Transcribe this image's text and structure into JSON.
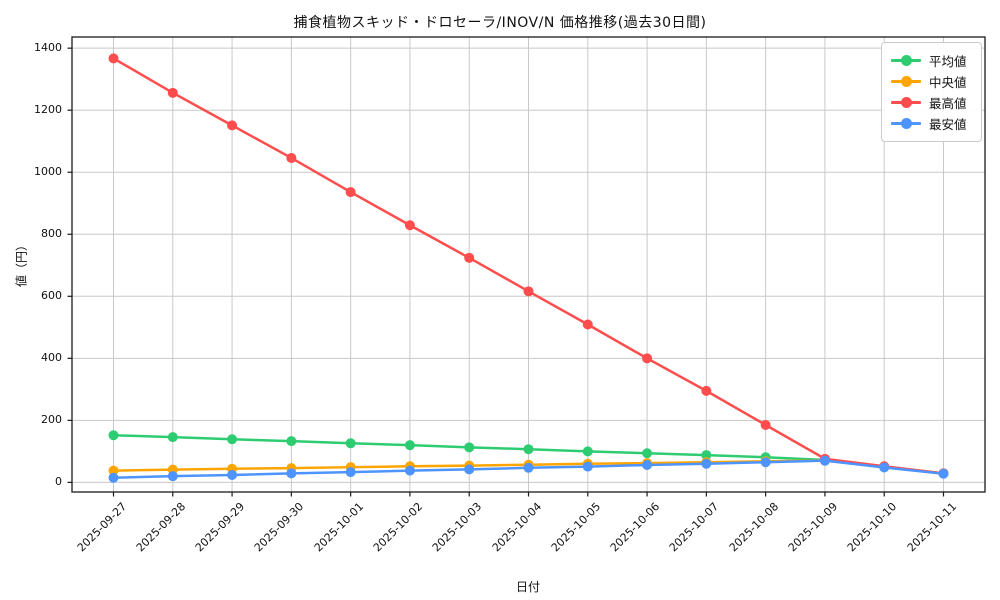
{
  "title": "捕食植物スキッド・ドロセーラ/INOV/N 価格推移(過去30日間)",
  "chart_data": {
    "type": "line",
    "title": "捕食植物スキッド・ドロセーラ/INOV/N 価格推移(過去30日間)",
    "xlabel": "日付",
    "ylabel": "値（円）",
    "x": [
      "2025-09-27",
      "2025-09-28",
      "2025-09-29",
      "2025-09-30",
      "2025-10-01",
      "2025-10-02",
      "2025-10-03",
      "2025-10-04",
      "2025-10-05",
      "2025-10-06",
      "2025-10-07",
      "2025-10-08",
      "2025-10-09",
      "2025-10-10",
      "2025-10-11"
    ],
    "series": [
      {
        "name": "平均値",
        "color": "#2ecc71",
        "values": [
          152,
          146,
          139,
          133,
          126,
          120,
          113,
          107,
          100,
          94,
          88,
          81,
          72,
          50,
          29
        ]
      },
      {
        "name": "中央値",
        "color": "#ffa502",
        "values": [
          38,
          41,
          44,
          46,
          49,
          52,
          54,
          57,
          60,
          62,
          65,
          68,
          70,
          50,
          29
        ]
      },
      {
        "name": "最高値",
        "color": "#ff4d4d",
        "values": [
          1367,
          1256,
          1151,
          1046,
          936,
          829,
          724,
          616,
          509,
          400,
          295,
          185,
          76,
          52,
          29
        ]
      },
      {
        "name": "最安値",
        "color": "#4d94ff",
        "values": [
          15,
          20,
          24,
          29,
          33,
          38,
          42,
          47,
          51,
          56,
          60,
          65,
          70,
          48,
          28
        ]
      }
    ],
    "yticks": [
      0,
      200,
      400,
      600,
      800,
      1000,
      1200,
      1400
    ],
    "ylim": [
      -31,
      1436
    ],
    "xlim": [
      -0.7,
      14.7
    ],
    "grid": true,
    "grid_color": "#c8c8c8",
    "axis_color": "#1a1a1a",
    "legend_position": "upper right",
    "background": "#ffffff"
  }
}
